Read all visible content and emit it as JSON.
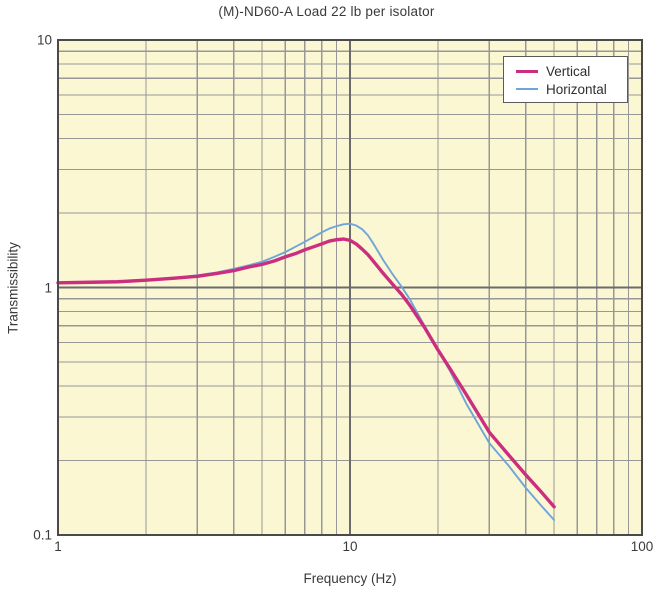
{
  "figure": {
    "title": "(M)-ND60-A Load 22 lb per isolator",
    "x_axis_label": "Frequency (Hz)",
    "y_axis_label": "Transmissibility"
  },
  "colors": {
    "plot_background": "#fbf7d3",
    "grid_minor": "#979797",
    "grid_major": "#6b6b6b",
    "plot_border": "#4a4a4a",
    "vertical_curve": "#cb2e7f",
    "horizontal_curve": "#6fa6da",
    "text": "#3a3a3a",
    "legend_background": "#ffffff",
    "legend_border": "#5a5a5a"
  },
  "chart_data": {
    "type": "line",
    "title": "(M)-ND60-A Load 22 lb per isolator",
    "xlabel": "Frequency (Hz)",
    "ylabel": "Transmissibility",
    "x_scale": "log",
    "y_scale": "log",
    "xlim": [
      1,
      100
    ],
    "ylim": [
      0.1,
      10
    ],
    "x_ticks": [
      1,
      10,
      100
    ],
    "y_ticks": [
      0.1,
      1,
      10
    ],
    "grid": "log major and minor gridlines on",
    "legend_position": "top-right",
    "series": [
      {
        "name": "Vertical",
        "color": "#cb2e7f",
        "stroke_width": 3.4,
        "points": [
          [
            1,
            1.045
          ],
          [
            1.3,
            1.05
          ],
          [
            1.6,
            1.055
          ],
          [
            2,
            1.07
          ],
          [
            2.5,
            1.09
          ],
          [
            3,
            1.11
          ],
          [
            3.5,
            1.14
          ],
          [
            4,
            1.17
          ],
          [
            4.5,
            1.21
          ],
          [
            5,
            1.24
          ],
          [
            5.5,
            1.28
          ],
          [
            6,
            1.33
          ],
          [
            6.5,
            1.37
          ],
          [
            7,
            1.42
          ],
          [
            7.5,
            1.46
          ],
          [
            8,
            1.5
          ],
          [
            8.5,
            1.54
          ],
          [
            9,
            1.56
          ],
          [
            9.5,
            1.57
          ],
          [
            10,
            1.55
          ],
          [
            10.5,
            1.5
          ],
          [
            11,
            1.43
          ],
          [
            11.5,
            1.36
          ],
          [
            12,
            1.28
          ],
          [
            13,
            1.14
          ],
          [
            14,
            1.03
          ],
          [
            15,
            0.94
          ],
          [
            16,
            0.85
          ],
          [
            18,
            0.69
          ],
          [
            20,
            0.56
          ],
          [
            22,
            0.47
          ],
          [
            25,
            0.37
          ],
          [
            30,
            0.26
          ],
          [
            35,
            0.21
          ],
          [
            40,
            0.175
          ],
          [
            45,
            0.15
          ],
          [
            50,
            0.13
          ]
        ]
      },
      {
        "name": "Horizontal",
        "color": "#6fa6da",
        "stroke_width": 1.9,
        "points": [
          [
            1,
            1.045
          ],
          [
            1.3,
            1.05
          ],
          [
            1.6,
            1.055
          ],
          [
            2,
            1.07
          ],
          [
            2.5,
            1.095
          ],
          [
            3,
            1.12
          ],
          [
            3.5,
            1.15
          ],
          [
            4,
            1.19
          ],
          [
            4.5,
            1.23
          ],
          [
            5,
            1.27
          ],
          [
            5.5,
            1.33
          ],
          [
            6,
            1.39
          ],
          [
            6.5,
            1.46
          ],
          [
            7,
            1.53
          ],
          [
            7.5,
            1.6
          ],
          [
            8,
            1.67
          ],
          [
            8.5,
            1.73
          ],
          [
            9,
            1.77
          ],
          [
            9.5,
            1.8
          ],
          [
            10,
            1.81
          ],
          [
            10.5,
            1.78
          ],
          [
            11,
            1.72
          ],
          [
            11.5,
            1.63
          ],
          [
            12,
            1.51
          ],
          [
            13,
            1.29
          ],
          [
            14,
            1.13
          ],
          [
            15,
            1.01
          ],
          [
            16,
            0.9
          ],
          [
            18,
            0.7
          ],
          [
            20,
            0.56
          ],
          [
            22,
            0.46
          ],
          [
            25,
            0.34
          ],
          [
            30,
            0.235
          ],
          [
            35,
            0.19
          ],
          [
            40,
            0.155
          ],
          [
            45,
            0.132
          ],
          [
            50,
            0.115
          ]
        ]
      }
    ]
  }
}
